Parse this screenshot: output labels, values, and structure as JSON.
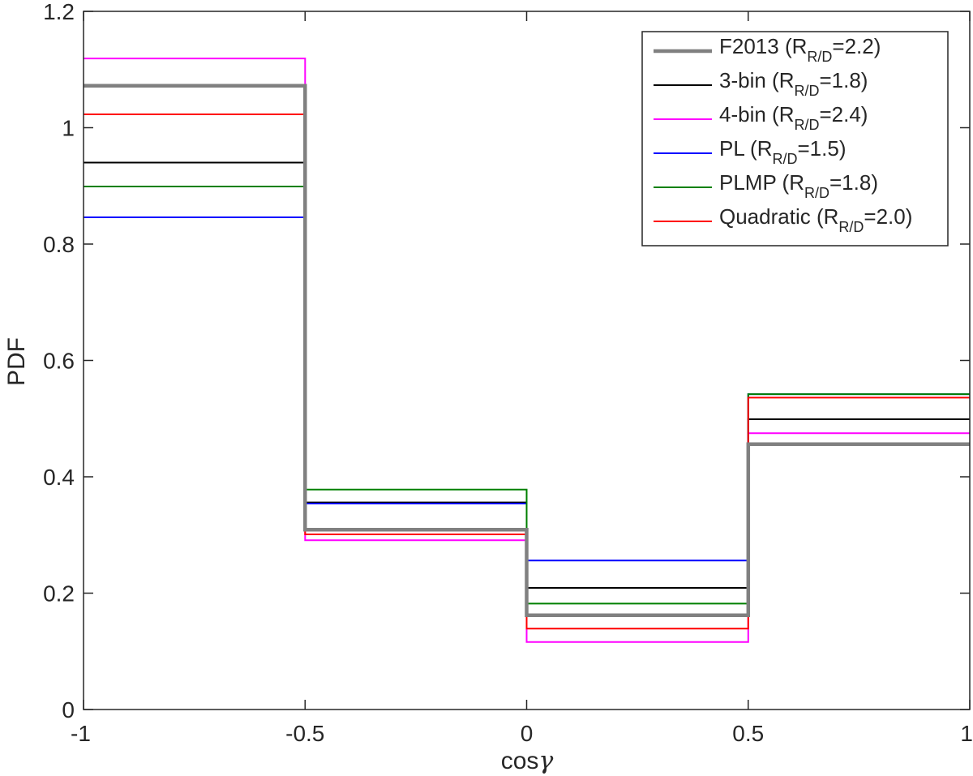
{
  "chart_data": {
    "type": "line",
    "subtype": "step",
    "xlabel": "cos",
    "xlabel_symbol": "γ",
    "ylabel": "PDF",
    "xlim": [
      -1,
      1
    ],
    "ylim": [
      0,
      1.2
    ],
    "x_ticks": [
      -1,
      -0.5,
      0,
      0.5,
      1
    ],
    "x_tick_labels": [
      "-1",
      "-0.5",
      "0",
      "0.5",
      "1"
    ],
    "y_ticks": [
      0,
      0.2,
      0.4,
      0.6,
      0.8,
      1,
      1.2
    ],
    "y_tick_labels": [
      "0",
      "0.2",
      "0.4",
      "0.6",
      "0.8",
      "1",
      "1.2"
    ],
    "grid": false,
    "legend_position": "top-right",
    "bin_edges": [
      -1,
      -0.5,
      0,
      0.5,
      1
    ],
    "series": [
      {
        "name": "F2013",
        "r_label": "R",
        "r_sub": "R/D",
        "r_value": "=2.2",
        "color": "#808080",
        "width": "thick",
        "values": [
          1.072,
          0.309,
          0.162,
          0.456
        ]
      },
      {
        "name": "3-bin",
        "r_label": "R",
        "r_sub": "R/D",
        "r_value": "=1.8",
        "color": "#000000",
        "width": "thin",
        "values": [
          0.94,
          0.356,
          0.209,
          0.499
        ]
      },
      {
        "name": "4-bin",
        "r_label": "R",
        "r_sub": "R/D",
        "r_value": "=2.4",
        "color": "#ff00ff",
        "width": "thin",
        "values": [
          1.119,
          0.291,
          0.116,
          0.475
        ]
      },
      {
        "name": "PL",
        "r_label": "R",
        "r_sub": "R/D",
        "r_value": "=1.5",
        "color": "#0000ff",
        "width": "thin",
        "values": [
          0.846,
          0.354,
          0.256,
          0.542
        ]
      },
      {
        "name": "PLMP",
        "r_label": "R",
        "r_sub": "R/D",
        "r_value": "=1.8",
        "color": "#008000",
        "width": "thin",
        "values": [
          0.899,
          0.378,
          0.182,
          0.542
        ]
      },
      {
        "name": "Quadratic",
        "r_label": "R",
        "r_sub": "R/D",
        "r_value": "=2.0",
        "color": "#ff0000",
        "width": "thin",
        "values": [
          1.023,
          0.301,
          0.139,
          0.536
        ]
      }
    ]
  }
}
